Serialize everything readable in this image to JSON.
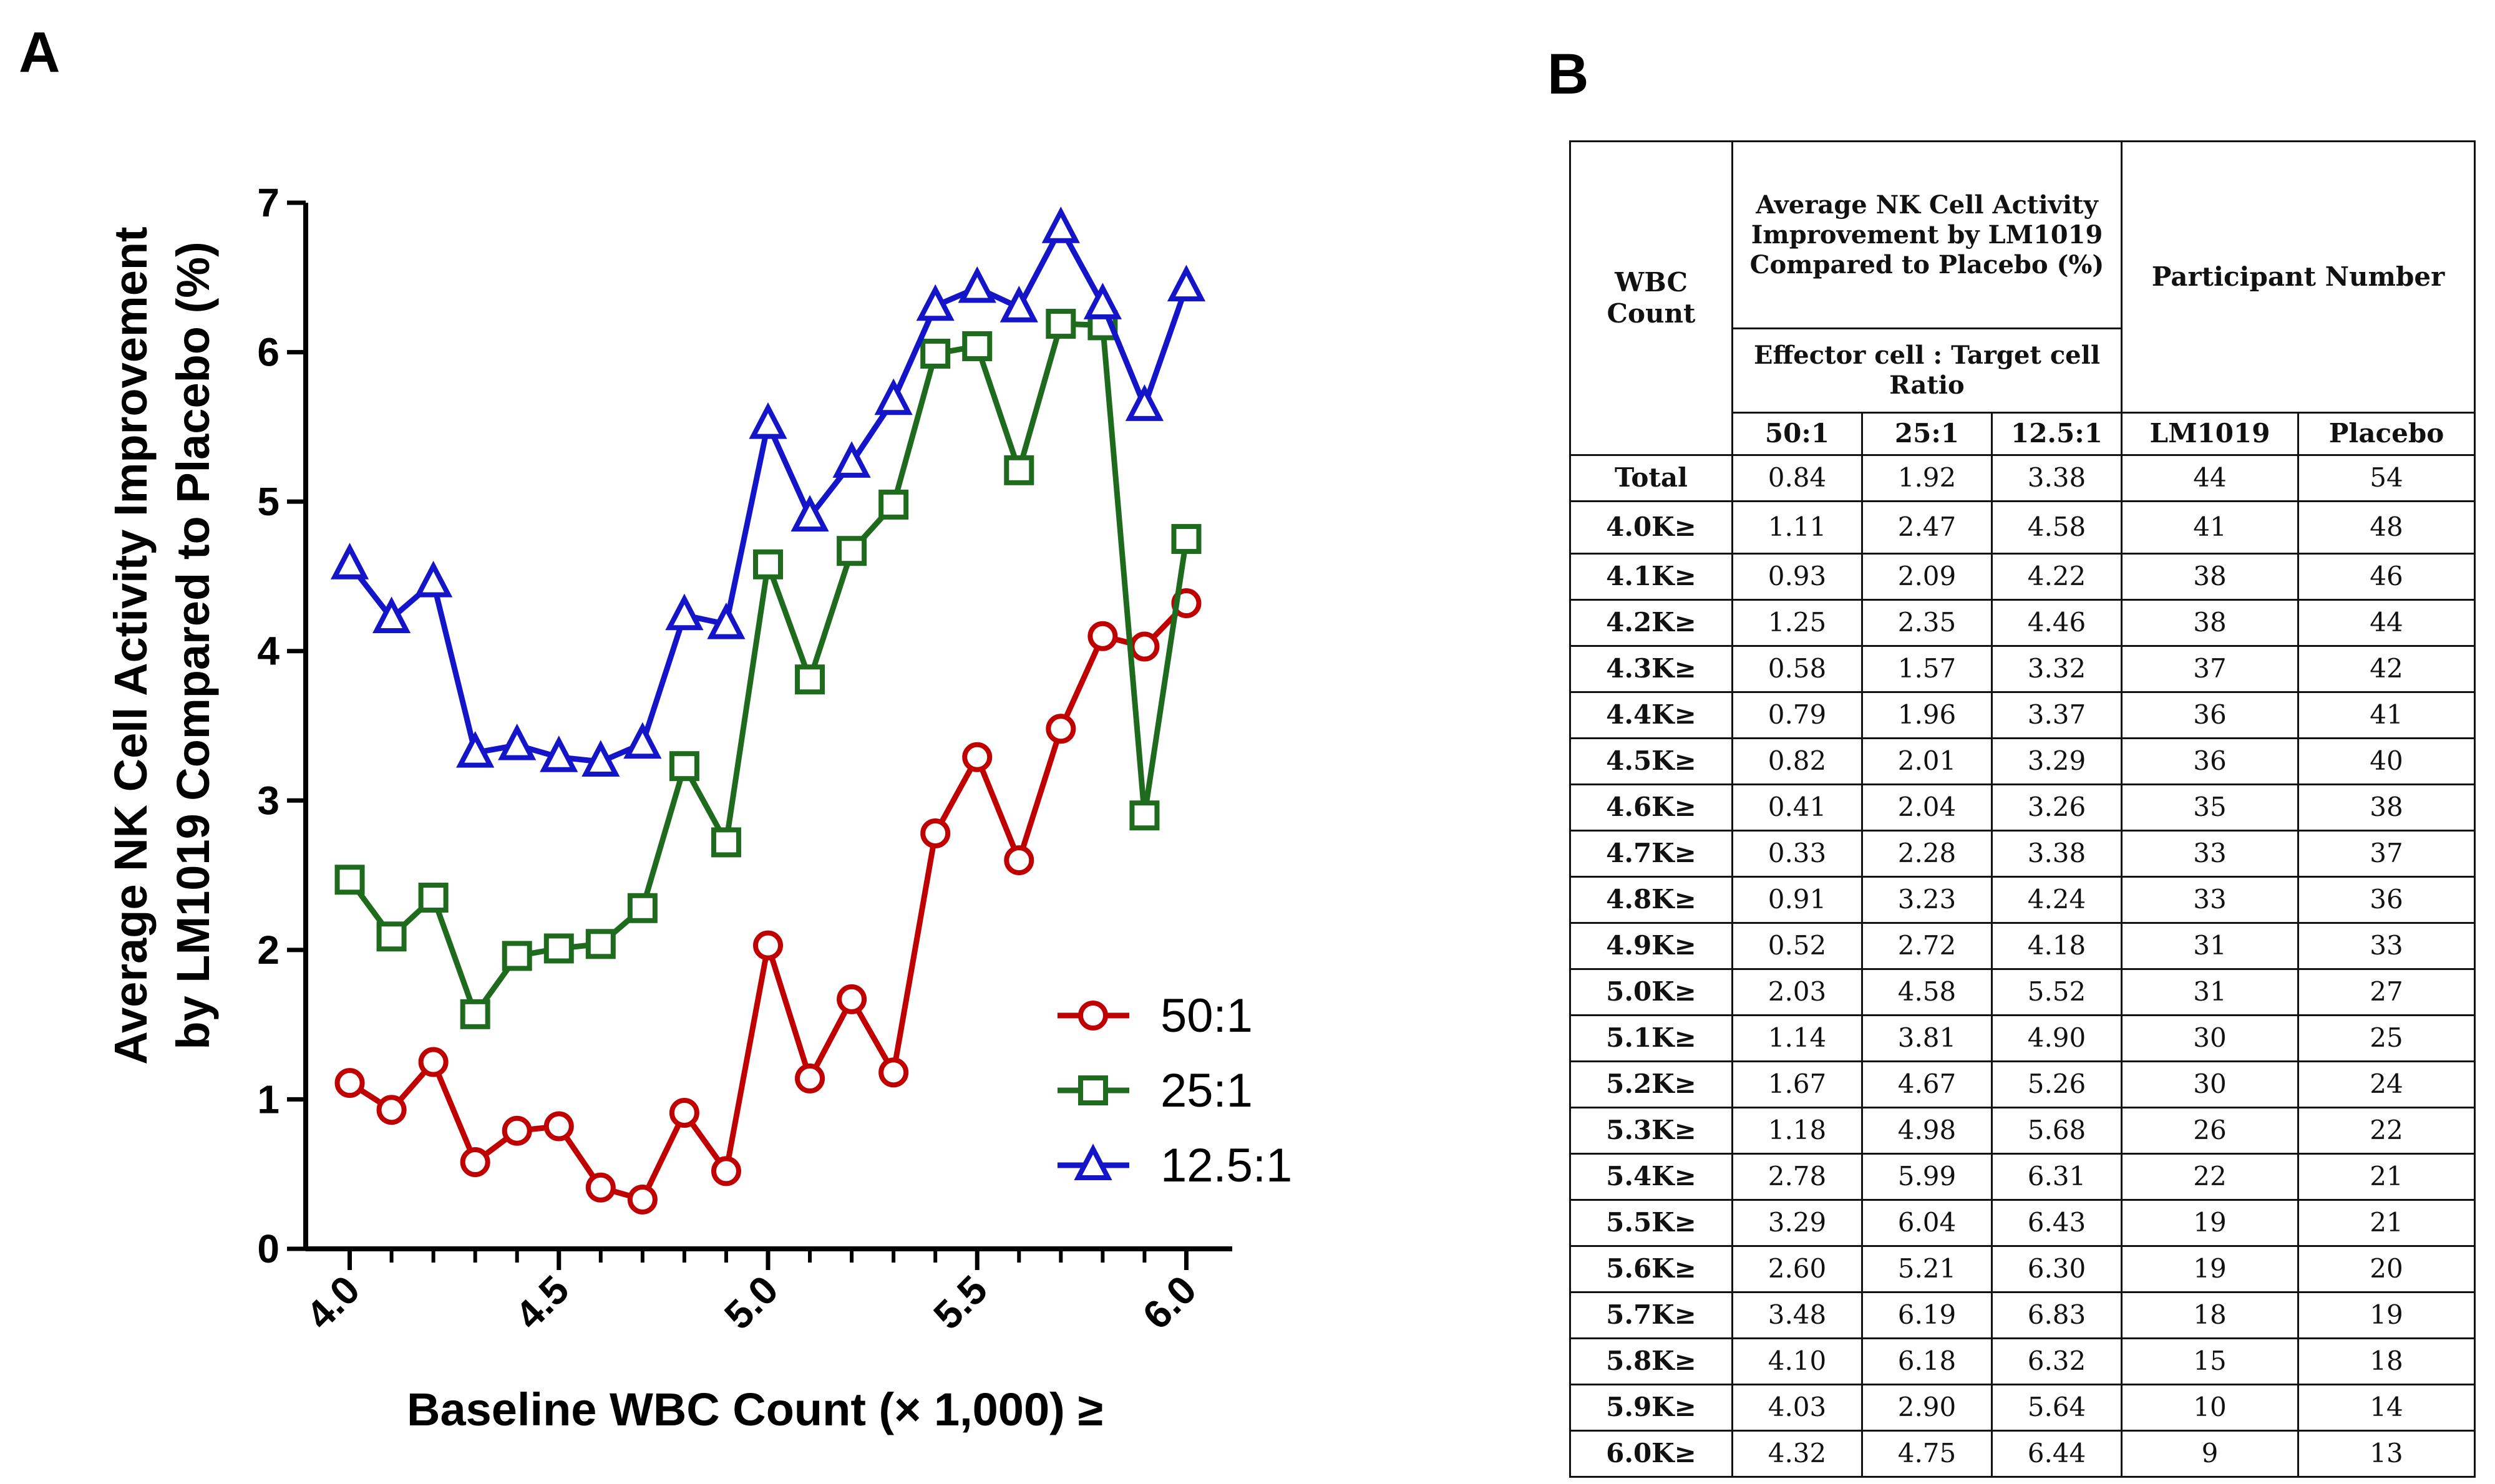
{
  "panels": {
    "a": "A",
    "b": "B"
  },
  "chart_data": {
    "type": "line",
    "ylabel_lines": [
      "Average NK Cell Activity Improvement",
      "by LM1019 Compared to Placebo (%)"
    ],
    "xlabel": "Baseline WBC Count (× 1,000) ≥",
    "x": [
      4.0,
      4.1,
      4.2,
      4.3,
      4.4,
      4.5,
      4.6,
      4.7,
      4.8,
      4.9,
      5.0,
      5.1,
      5.2,
      5.3,
      5.4,
      5.5,
      5.6,
      5.7,
      5.8,
      5.9,
      6.0
    ],
    "xlim": [
      3.95,
      6.05
    ],
    "ylim": [
      0,
      7
    ],
    "xticks": [
      "4.0",
      "4.5",
      "5.0",
      "5.5",
      "6.0"
    ],
    "xtick_values": [
      4.0,
      4.5,
      5.0,
      5.5,
      6.0
    ],
    "yticks": [
      "0",
      "1",
      "2",
      "3",
      "4",
      "5",
      "6",
      "7"
    ],
    "ytick_values": [
      0,
      1,
      2,
      3,
      4,
      5,
      6,
      7
    ],
    "legend_position": "lower-right",
    "series": [
      {
        "name": "50:1",
        "color": "#c00000",
        "marker": "circle",
        "values": [
          1.11,
          0.93,
          1.25,
          0.58,
          0.79,
          0.82,
          0.41,
          0.33,
          0.91,
          0.52,
          2.03,
          1.14,
          1.67,
          1.18,
          2.78,
          3.29,
          2.6,
          3.48,
          4.1,
          4.03,
          4.32
        ]
      },
      {
        "name": "25:1",
        "color": "#1e6b1e",
        "marker": "square",
        "values": [
          2.47,
          2.09,
          2.35,
          1.57,
          1.96,
          2.01,
          2.04,
          2.28,
          3.23,
          2.72,
          4.58,
          3.81,
          4.67,
          4.98,
          5.99,
          6.04,
          5.21,
          6.19,
          6.18,
          2.9,
          4.75
        ]
      },
      {
        "name": "12.5:1",
        "color": "#1414c8",
        "marker": "triangle",
        "values": [
          4.58,
          4.22,
          4.46,
          3.32,
          3.37,
          3.29,
          3.26,
          3.38,
          4.24,
          4.18,
          5.52,
          4.9,
          5.26,
          5.68,
          6.31,
          6.43,
          6.3,
          6.83,
          6.32,
          5.64,
          6.44
        ]
      }
    ]
  },
  "table": {
    "header": {
      "wbc_count": "WBC Count",
      "avg_title": "Average NK Cell Activity Improvement by LM1019 Compared to Placebo (%)",
      "ratio_title": "Effector cell : Target cell Ratio",
      "participant_title": "Participant Number",
      "col_50": "50:1",
      "col_25": "25:1",
      "col_125": "12.5:1",
      "col_lm": "LM1019",
      "col_placebo": "Placebo"
    },
    "rows": [
      {
        "label": "Total",
        "r50": "0.84",
        "r25": "1.92",
        "r125": "3.38",
        "lm": "44",
        "pl": "54"
      },
      {
        "label": "4.0K≥",
        "r50": "1.11",
        "r25": "2.47",
        "r125": "4.58",
        "lm": "41",
        "pl": "48"
      },
      {
        "label": "4.1K≥",
        "r50": "0.93",
        "r25": "2.09",
        "r125": "4.22",
        "lm": "38",
        "pl": "46"
      },
      {
        "label": "4.2K≥",
        "r50": "1.25",
        "r25": "2.35",
        "r125": "4.46",
        "lm": "38",
        "pl": "44"
      },
      {
        "label": "4.3K≥",
        "r50": "0.58",
        "r25": "1.57",
        "r125": "3.32",
        "lm": "37",
        "pl": "42"
      },
      {
        "label": "4.4K≥",
        "r50": "0.79",
        "r25": "1.96",
        "r125": "3.37",
        "lm": "36",
        "pl": "41"
      },
      {
        "label": "4.5K≥",
        "r50": "0.82",
        "r25": "2.01",
        "r125": "3.29",
        "lm": "36",
        "pl": "40"
      },
      {
        "label": "4.6K≥",
        "r50": "0.41",
        "r25": "2.04",
        "r125": "3.26",
        "lm": "35",
        "pl": "38"
      },
      {
        "label": "4.7K≥",
        "r50": "0.33",
        "r25": "2.28",
        "r125": "3.38",
        "lm": "33",
        "pl": "37"
      },
      {
        "label": "4.8K≥",
        "r50": "0.91",
        "r25": "3.23",
        "r125": "4.24",
        "lm": "33",
        "pl": "36"
      },
      {
        "label": "4.9K≥",
        "r50": "0.52",
        "r25": "2.72",
        "r125": "4.18",
        "lm": "31",
        "pl": "33"
      },
      {
        "label": "5.0K≥",
        "r50": "2.03",
        "r25": "4.58",
        "r125": "5.52",
        "lm": "31",
        "pl": "27"
      },
      {
        "label": "5.1K≥",
        "r50": "1.14",
        "r25": "3.81",
        "r125": "4.90",
        "lm": "30",
        "pl": "25"
      },
      {
        "label": "5.2K≥",
        "r50": "1.67",
        "r25": "4.67",
        "r125": "5.26",
        "lm": "30",
        "pl": "24"
      },
      {
        "label": "5.3K≥",
        "r50": "1.18",
        "r25": "4.98",
        "r125": "5.68",
        "lm": "26",
        "pl": "22"
      },
      {
        "label": "5.4K≥",
        "r50": "2.78",
        "r25": "5.99",
        "r125": "6.31",
        "lm": "22",
        "pl": "21"
      },
      {
        "label": "5.5K≥",
        "r50": "3.29",
        "r25": "6.04",
        "r125": "6.43",
        "lm": "19",
        "pl": "21"
      },
      {
        "label": "5.6K≥",
        "r50": "2.60",
        "r25": "5.21",
        "r125": "6.30",
        "lm": "19",
        "pl": "20"
      },
      {
        "label": "5.7K≥",
        "r50": "3.48",
        "r25": "6.19",
        "r125": "6.83",
        "lm": "18",
        "pl": "19"
      },
      {
        "label": "5.8K≥",
        "r50": "4.10",
        "r25": "6.18",
        "r125": "6.32",
        "lm": "15",
        "pl": "18"
      },
      {
        "label": "5.9K≥",
        "r50": "4.03",
        "r25": "2.90",
        "r125": "5.64",
        "lm": "10",
        "pl": "14"
      },
      {
        "label": "6.0K≥",
        "r50": "4.32",
        "r25": "4.75",
        "r125": "6.44",
        "lm": "9",
        "pl": "13"
      }
    ]
  }
}
